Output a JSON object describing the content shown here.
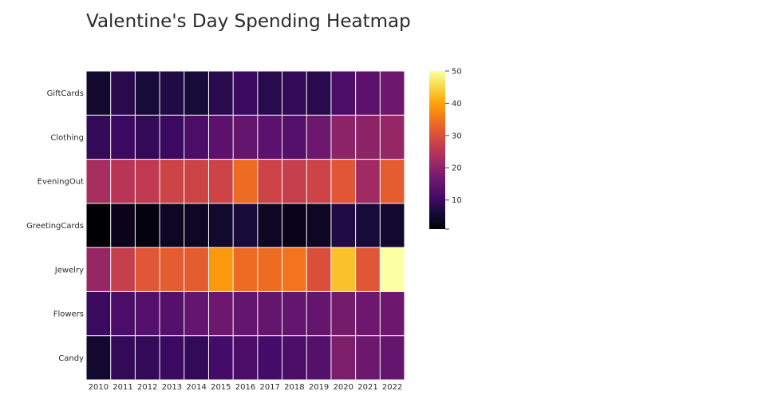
{
  "chart_data": {
    "type": "heatmap",
    "title": "Valentine's Day Spending Heatmap",
    "x": [
      "2010",
      "2011",
      "2012",
      "2013",
      "2014",
      "2015",
      "2016",
      "2017",
      "2018",
      "2019",
      "2020",
      "2021",
      "2022"
    ],
    "y": [
      "GiftCards",
      "Clothing",
      "EveningOut",
      "GreetingCards",
      "Jewelry",
      "Flowers",
      "Candy"
    ],
    "z": [
      [
        5,
        8,
        6,
        7,
        6,
        8,
        10,
        8,
        9,
        8,
        12,
        14,
        16
      ],
      [
        9,
        10,
        9,
        10,
        12,
        14,
        15,
        14,
        13,
        16,
        20,
        20,
        21
      ],
      [
        23,
        25,
        26,
        28,
        28,
        28,
        34,
        28,
        27,
        28,
        31,
        22,
        32
      ],
      [
        1,
        3,
        2,
        4,
        4,
        5,
        6,
        4,
        3,
        4,
        7,
        6,
        5
      ],
      [
        21,
        27,
        31,
        32,
        32,
        39,
        34,
        34,
        35,
        30,
        43,
        31,
        50
      ],
      [
        10,
        12,
        13,
        13,
        15,
        16,
        15,
        15,
        15,
        15,
        17,
        16,
        16
      ],
      [
        5,
        9,
        9,
        10,
        9,
        11,
        12,
        11,
        12,
        13,
        18,
        16,
        15
      ]
    ],
    "colorscale": "Inferno",
    "zmin": 1,
    "zmax": 50,
    "colorbar": {
      "ticks": [
        10,
        20,
        30,
        40,
        50
      ],
      "tick_labels": [
        "10",
        "20",
        "30",
        "40",
        "50"
      ]
    },
    "gap_color": "#ffffff"
  }
}
